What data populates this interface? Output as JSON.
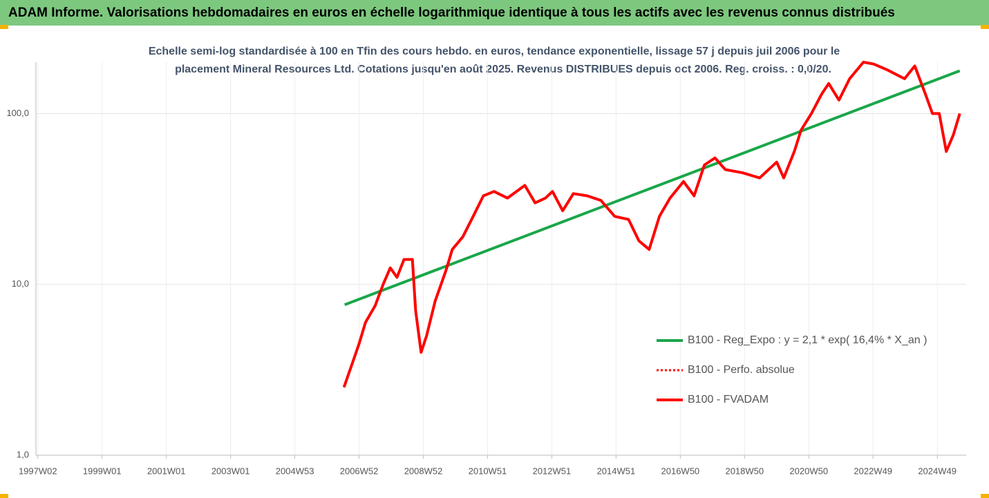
{
  "chart_data": {
    "type": "line",
    "title": "ADAM Informe. Valorisations hebdomadaires en euros en échelle logarithmique identique à tous les actifs avec les revenus connus distribués",
    "subtitle": [
      "Echelle semi-log standardisée à 100 en Tfin des cours hebdo. en euros, tendance exponentielle, lissage 57 j depuis juil 2006 pour le",
      "placement Mineral Resources Ltd. Cotations jusqu'en août 2025. Revenus DISTRIBUES depuis oct 2006. Reg. croiss. : 0,0/20."
    ],
    "log_scale": true,
    "grid": true,
    "legend": "lower right",
    "xlim": [
      1996.94,
      2025.9
    ],
    "xticks": [
      {
        "value": 1997.0,
        "label": "1997W02"
      },
      {
        "value": 1999.0,
        "label": "1999W01"
      },
      {
        "value": 2001.0,
        "label": "2001W01"
      },
      {
        "value": 2003.0,
        "label": "2003W01"
      },
      {
        "value": 2005.0,
        "label": "2004W53"
      },
      {
        "value": 2007.0,
        "label": "2006W52"
      },
      {
        "value": 2009.0,
        "label": "2008W52"
      },
      {
        "value": 2011.0,
        "label": "2010W51"
      },
      {
        "value": 2013.0,
        "label": "2012W51"
      },
      {
        "value": 2015.0,
        "label": "2014W51"
      },
      {
        "value": 2017.0,
        "label": "2016W50"
      },
      {
        "value": 2019.0,
        "label": "2018W50"
      },
      {
        "value": 2021.0,
        "label": "2020W50"
      },
      {
        "value": 2023.0,
        "label": "2022W49"
      },
      {
        "value": 2025.0,
        "label": "2024W49"
      }
    ],
    "ylim": [
      1,
      200
    ],
    "yticks": [
      {
        "value": 1,
        "label": "1,0"
      },
      {
        "value": 10,
        "label": "10,0"
      },
      {
        "value": 100,
        "label": "100,0"
      }
    ],
    "series": [
      {
        "name": "B100 - Reg_Expo : y = 2,1 * exp( 16,4% *  X_an )",
        "color": "#1aa64a",
        "style": "solid",
        "x": [
          2006.55,
          2025.7
        ],
        "values": [
          7.6,
          178
        ]
      },
      {
        "name": "B100 - Perfo. absolue",
        "color": "#ff0000",
        "style": "dotted",
        "x": [
          2006.53,
          2006.8,
          2007.0,
          2007.2,
          2007.5,
          2007.75,
          2007.97,
          2008.18,
          2008.4,
          2008.66,
          2008.76,
          2008.93,
          2009.1,
          2009.37,
          2009.7,
          2009.9,
          2010.23,
          2010.55,
          2010.87,
          2011.2,
          2011.62,
          2012.16,
          2012.48,
          2012.8,
          2013.02,
          2013.34,
          2013.67,
          2014.1,
          2014.53,
          2014.96,
          2015.39,
          2015.71,
          2016.03,
          2016.35,
          2016.68,
          2017.1,
          2017.43,
          2017.75,
          2018.08,
          2018.4,
          2018.94,
          2019.47,
          2020.0,
          2020.22,
          2020.55,
          2020.76,
          2021.08,
          2021.4,
          2021.62,
          2021.94,
          2022.27,
          2022.7,
          2023.02,
          2023.45,
          2023.98,
          2024.3,
          2024.63,
          2024.85,
          2025.06,
          2025.28,
          2025.5,
          2025.7
        ],
        "values": [
          2.5,
          3.5,
          4.5,
          6,
          7.5,
          10,
          12.5,
          11,
          14,
          14,
          7,
          4,
          5,
          8,
          12,
          16,
          19,
          25,
          33,
          35,
          32,
          38,
          30,
          32,
          35,
          27,
          34,
          33,
          31,
          25,
          24,
          18,
          16,
          25,
          32,
          40,
          33,
          50,
          55,
          47,
          45,
          42,
          52,
          42,
          60,
          80,
          100,
          130,
          150,
          120,
          160,
          200,
          195,
          180,
          160,
          190,
          130,
          100,
          100,
          60,
          75,
          100
        ]
      },
      {
        "name": "B100 - FVADAM",
        "color": "#ff0000",
        "style": "solid",
        "x": [
          2006.53,
          2006.8,
          2007.0,
          2007.2,
          2007.5,
          2007.75,
          2007.97,
          2008.18,
          2008.4,
          2008.66,
          2008.76,
          2008.93,
          2009.1,
          2009.37,
          2009.7,
          2009.9,
          2010.23,
          2010.55,
          2010.87,
          2011.2,
          2011.62,
          2012.16,
          2012.48,
          2012.8,
          2013.02,
          2013.34,
          2013.67,
          2014.1,
          2014.53,
          2014.96,
          2015.39,
          2015.71,
          2016.03,
          2016.35,
          2016.68,
          2017.1,
          2017.43,
          2017.75,
          2018.08,
          2018.4,
          2018.94,
          2019.47,
          2020.0,
          2020.22,
          2020.55,
          2020.76,
          2021.08,
          2021.4,
          2021.62,
          2021.94,
          2022.27,
          2022.7,
          2023.02,
          2023.45,
          2023.98,
          2024.3,
          2024.63,
          2024.85,
          2025.06,
          2025.28,
          2025.5,
          2025.7
        ],
        "values": [
          2.5,
          3.5,
          4.5,
          6,
          7.5,
          10,
          12.5,
          11,
          14,
          14,
          7,
          4,
          5,
          8,
          12,
          16,
          19,
          25,
          33,
          35,
          32,
          38,
          30,
          32,
          35,
          27,
          34,
          33,
          31,
          25,
          24,
          18,
          16,
          25,
          32,
          40,
          33,
          50,
          55,
          47,
          45,
          42,
          52,
          42,
          60,
          80,
          100,
          130,
          150,
          120,
          160,
          200,
          195,
          180,
          160,
          190,
          130,
          100,
          100,
          60,
          75,
          100
        ]
      }
    ]
  }
}
